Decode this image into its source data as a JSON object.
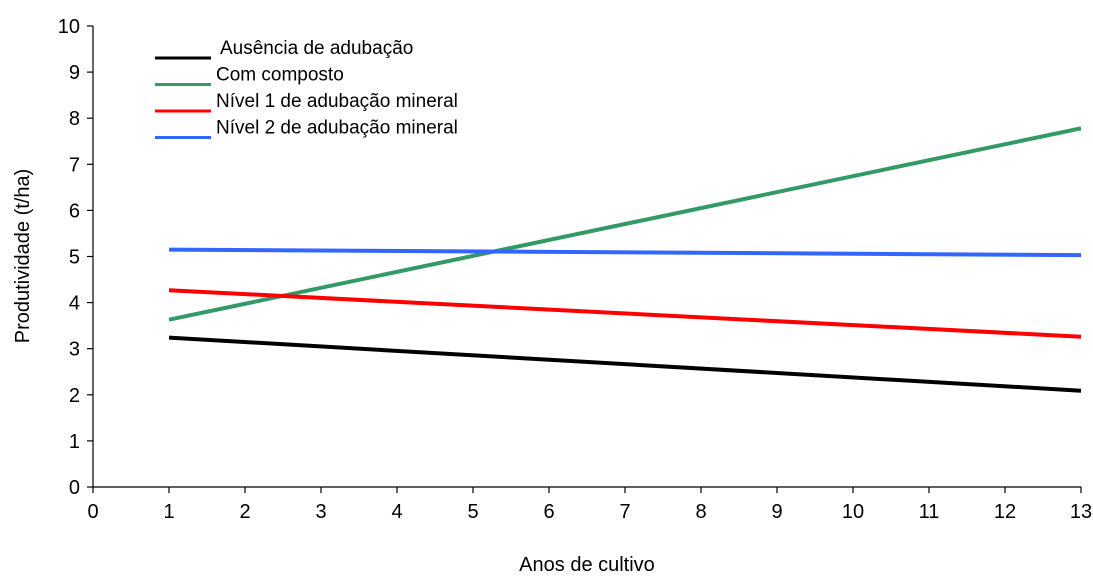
{
  "chart_data": {
    "type": "line",
    "title": "",
    "xlabel": "Anos de cultivo",
    "ylabel": "Produtividade (t/ha)",
    "xlim": [
      0,
      13
    ],
    "ylim": [
      0,
      10
    ],
    "x_ticks": [
      0,
      1,
      2,
      3,
      4,
      5,
      6,
      7,
      8,
      9,
      10,
      11,
      12,
      13
    ],
    "y_ticks": [
      0,
      1,
      2,
      3,
      4,
      5,
      6,
      7,
      8,
      9,
      10
    ],
    "grid": false,
    "legend_position": "top-left",
    "series": [
      {
        "name": "Ausência de adubação",
        "color": "#000000",
        "x": [
          1,
          13
        ],
        "y": [
          3.24,
          2.09
        ]
      },
      {
        "name": "Com composto",
        "color": "#339966",
        "x": [
          1,
          13
        ],
        "y": [
          3.63,
          7.78
        ]
      },
      {
        "name": "Nível 1 de adubação mineral",
        "color": "#ff0000",
        "x": [
          1,
          13
        ],
        "y": [
          4.27,
          3.26
        ]
      },
      {
        "name": "Nível 2 de adubação mineral",
        "color": "#3366ff",
        "x": [
          1,
          13
        ],
        "y": [
          5.15,
          5.03
        ]
      }
    ]
  }
}
